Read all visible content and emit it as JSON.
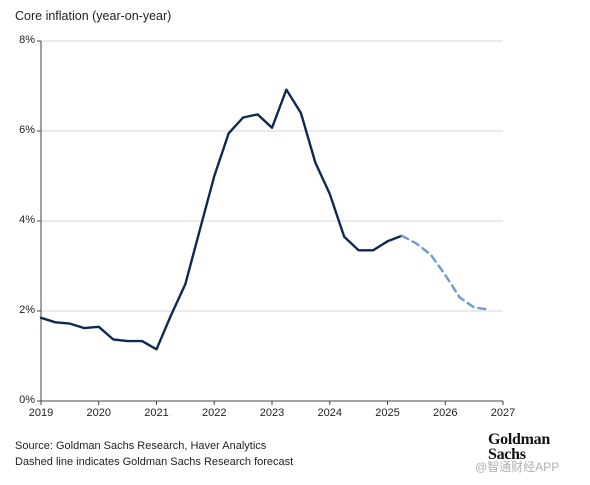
{
  "chart_data": {
    "type": "line",
    "title": "Core inflation (year-on-year)",
    "xlabel": "",
    "ylabel": "",
    "ylim": [
      0,
      8
    ],
    "xlim": [
      2019,
      2027
    ],
    "yticks": [
      "0%",
      "2%",
      "4%",
      "6%",
      "8%"
    ],
    "xticks": [
      "2019",
      "2020",
      "2021",
      "2022",
      "2023",
      "2024",
      "2025",
      "2026",
      "2027"
    ],
    "grid": true,
    "series": [
      {
        "style": "solid",
        "color": "#0d2a52",
        "x": [
          2019.0,
          2019.25,
          2019.5,
          2019.75,
          2020.0,
          2020.25,
          2020.5,
          2020.75,
          2021.0,
          2021.25,
          2021.5,
          2021.75,
          2022.0,
          2022.25,
          2022.5,
          2022.75,
          2023.0,
          2023.25,
          2023.5,
          2023.75,
          2024.0,
          2024.25,
          2024.5,
          2024.75,
          2025.0,
          2025.25
        ],
        "y": [
          1.85,
          1.75,
          1.72,
          1.62,
          1.65,
          1.37,
          1.33,
          1.33,
          1.15,
          1.9,
          2.6,
          3.8,
          5.0,
          5.95,
          6.3,
          6.37,
          6.07,
          6.92,
          6.4,
          5.3,
          4.6,
          3.65,
          3.35,
          3.35,
          3.55,
          3.67
        ]
      },
      {
        "style": "dashed",
        "color": "#6f9ad3",
        "x": [
          2025.25,
          2025.5,
          2025.75,
          2026.0,
          2026.25,
          2026.5,
          2026.75
        ],
        "y": [
          3.67,
          3.5,
          3.25,
          2.8,
          2.3,
          2.08,
          2.03
        ]
      }
    ]
  },
  "source_line": "Source: Goldman Sachs Research, Haver Analytics",
  "note_line": "Dashed line indicates Goldman Sachs Research forecast",
  "logo": {
    "line1": "Goldman",
    "line2": "Sachs"
  },
  "watermark": "@智通财经APP"
}
